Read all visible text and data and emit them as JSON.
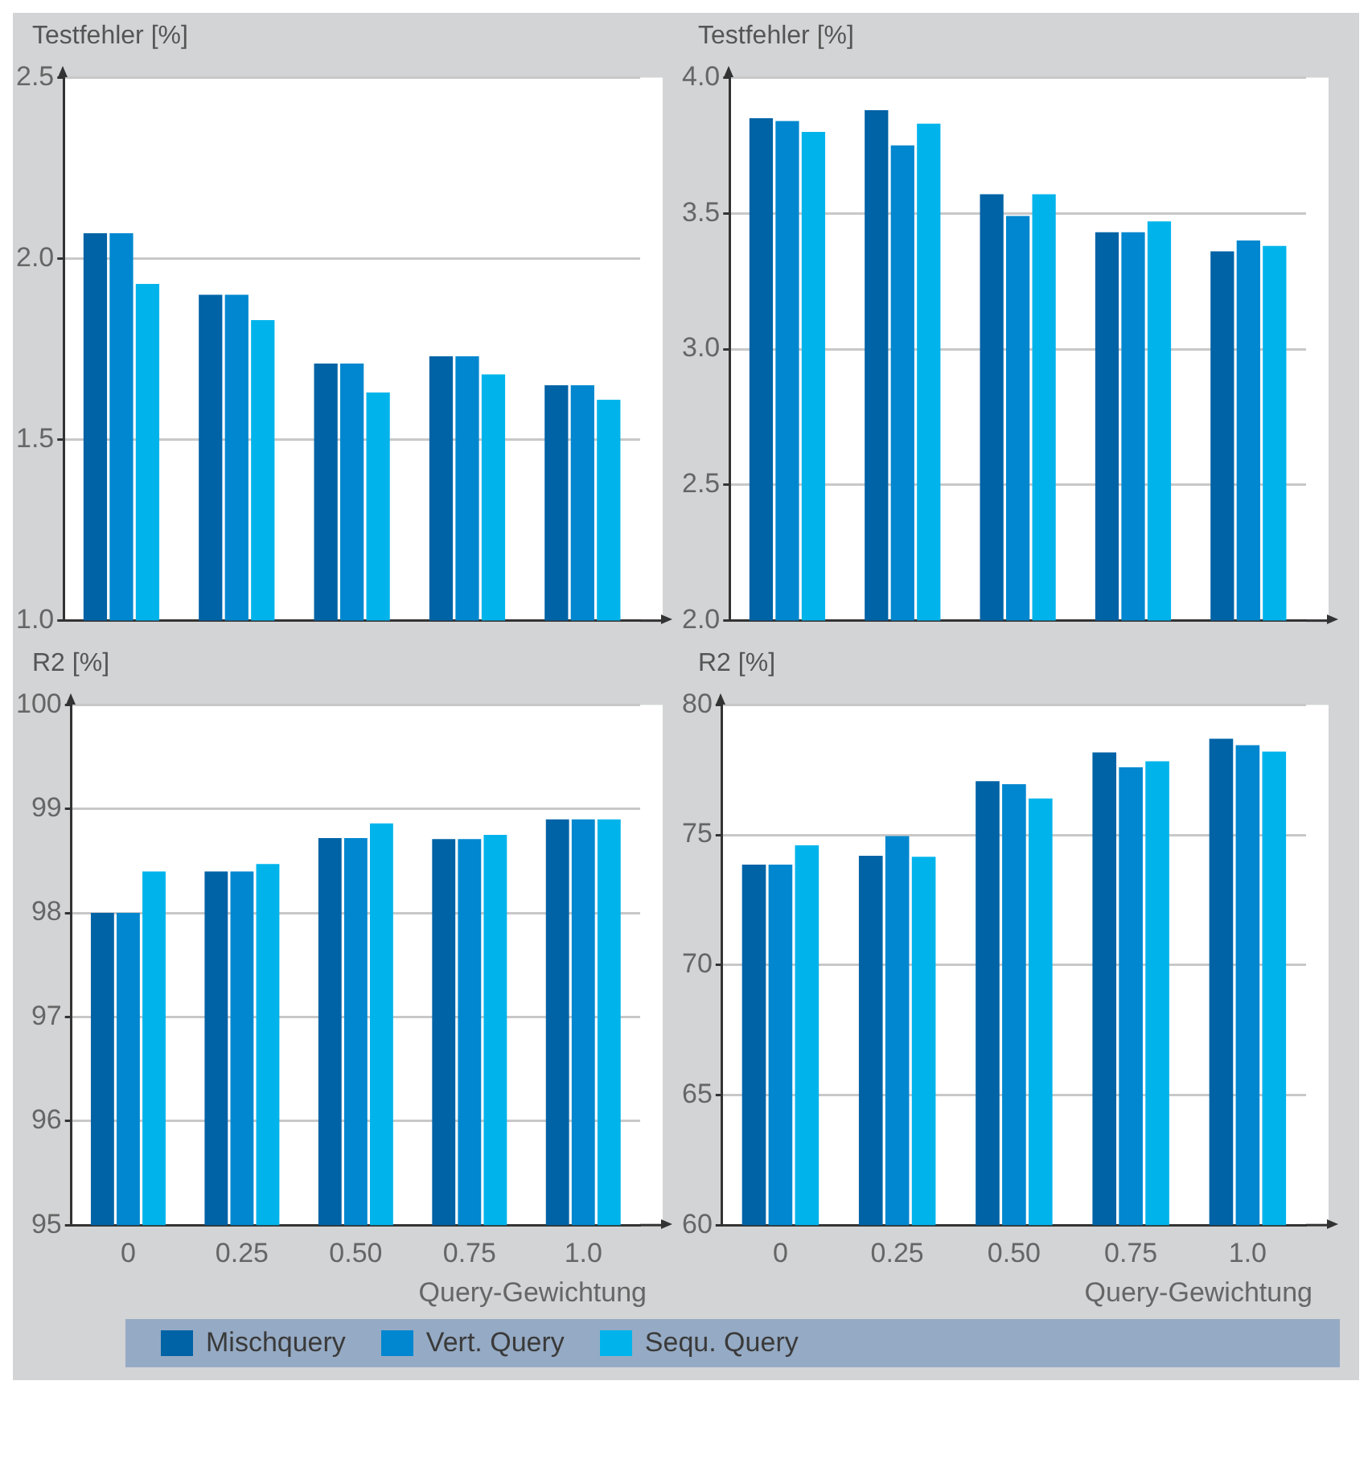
{
  "chart_data": [
    {
      "type": "bar",
      "ylabel": "Testfehler [%]",
      "categories": [
        "0",
        "0.25",
        "0.50",
        "0.75",
        "1.0"
      ],
      "tick_labels": "y",
      "grid": "y",
      "ylim": [
        1.0,
        2.5
      ],
      "yticks": [
        {
          "value": 1,
          "label": "1.0"
        },
        {
          "value": 1.5,
          "label": "1.5"
        },
        {
          "value": 2,
          "label": "2.0"
        },
        {
          "value": 2.5,
          "label": "2.5"
        }
      ],
      "series": [
        {
          "color": "#0063a6",
          "values": [
            2.07,
            1.9,
            1.71,
            1.73,
            1.65
          ]
        },
        {
          "color": "#0087cf",
          "values": [
            2.07,
            1.9,
            1.71,
            1.73,
            1.65
          ]
        },
        {
          "color": "#00b4eb",
          "values": [
            1.93,
            1.83,
            1.63,
            1.68,
            1.61
          ]
        }
      ]
    },
    {
      "type": "bar",
      "ylabel": "Testfehler [%]",
      "categories": [
        "0",
        "0.25",
        "0.50",
        "0.75",
        "1.0"
      ],
      "tick_labels": "y",
      "grid": "y",
      "ylim": [
        2.0,
        4.0
      ],
      "yticks": [
        {
          "value": 2,
          "label": "2.0"
        },
        {
          "value": 2.5,
          "label": "2.5"
        },
        {
          "value": 3,
          "label": "3.0"
        },
        {
          "value": 3.5,
          "label": "3.5"
        },
        {
          "value": 4,
          "label": "4.0"
        }
      ],
      "series": [
        {
          "color": "#0063a6",
          "values": [
            3.85,
            3.88,
            3.57,
            3.43,
            3.36
          ]
        },
        {
          "color": "#0087cf",
          "values": [
            3.84,
            3.75,
            3.49,
            3.43,
            3.4
          ]
        },
        {
          "color": "#00b4eb",
          "values": [
            3.8,
            3.83,
            3.57,
            3.47,
            3.38
          ]
        }
      ]
    },
    {
      "type": "bar",
      "ylabel": "R2 [%]",
      "xlabel": "Query-Gewichtung",
      "categories": [
        "0",
        "0.25",
        "0.50",
        "0.75",
        "1.0"
      ],
      "grid": "y",
      "ylim": [
        95,
        100
      ],
      "yticks": [
        95,
        96,
        97,
        98,
        99,
        100
      ],
      "series": [
        {
          "color": "#0063a6",
          "values": [
            98.0,
            98.4,
            98.72,
            98.71,
            98.9
          ]
        },
        {
          "color": "#0087cf",
          "values": [
            98.0,
            98.4,
            98.72,
            98.71,
            98.9
          ]
        },
        {
          "color": "#00b4eb",
          "values": [
            98.4,
            98.47,
            98.86,
            98.75,
            98.9
          ]
        }
      ]
    },
    {
      "type": "bar",
      "ylabel": "R2 [%]",
      "xlabel": "Query-Gewichtung",
      "categories": [
        "0",
        "0.25",
        "0.50",
        "0.75",
        "1.0"
      ],
      "grid": "y",
      "legend": "bottom",
      "ylim": [
        60,
        80
      ],
      "yticks": [
        60,
        65,
        70,
        75,
        80
      ],
      "series": [
        {
          "name": "Mischquery",
          "color": "#0063a6",
          "values": [
            73.86,
            74.2,
            77.07,
            78.17,
            78.7
          ]
        },
        {
          "name": "Vert. Query",
          "color": "#0087cf",
          "values": [
            73.86,
            74.96,
            76.95,
            77.6,
            78.45
          ]
        },
        {
          "name": "Sequ. Query",
          "color": "#00b4eb",
          "values": [
            74.6,
            74.16,
            76.4,
            77.83,
            78.2
          ]
        }
      ]
    }
  ]
}
